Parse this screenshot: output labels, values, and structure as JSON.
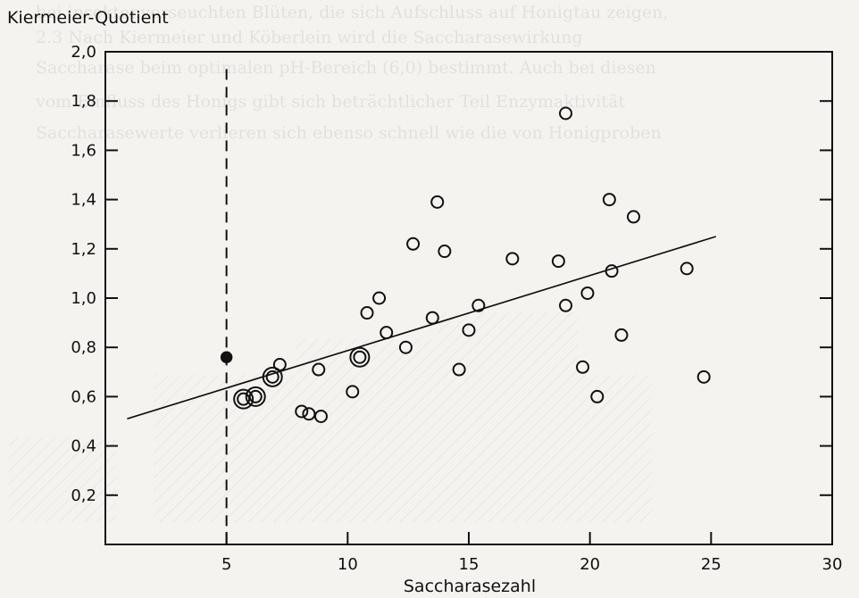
{
  "chart_data": {
    "type": "scatter",
    "title": "",
    "ylabel": "Kiermeier-Quotient",
    "xlabel": "Saccharasezahl",
    "xlim": [
      0,
      30
    ],
    "ylim": [
      0,
      2.0
    ],
    "x_ticks": [
      5,
      10,
      15,
      20,
      25,
      30
    ],
    "y_ticks": [
      0.2,
      0.4,
      0.6,
      0.8,
      1.0,
      1.2,
      1.4,
      1.6,
      1.8,
      2.0
    ],
    "x_tick_labels": [
      "5",
      "10",
      "15",
      "20",
      "25",
      "30"
    ],
    "y_tick_labels": [
      "0,2",
      "0,4",
      "0,6",
      "0,8",
      "1,0",
      "1,2",
      "1,4",
      "1,6",
      "1,8",
      "2,0"
    ],
    "grid": false,
    "legend": "none",
    "reference_line_x": 5,
    "regression_line": {
      "x": [
        0.9,
        25.2
      ],
      "y": [
        0.51,
        1.25
      ]
    },
    "series": [
      {
        "marker": "open-circle",
        "points": [
          [
            7.2,
            0.73
          ],
          [
            8.1,
            0.54
          ],
          [
            8.4,
            0.53
          ],
          [
            8.8,
            0.71
          ],
          [
            8.9,
            0.52
          ],
          [
            10.2,
            0.62
          ],
          [
            10.8,
            0.94
          ],
          [
            11.3,
            1.0
          ],
          [
            11.6,
            0.86
          ],
          [
            12.4,
            0.8
          ],
          [
            12.7,
            1.22
          ],
          [
            13.5,
            0.92
          ],
          [
            13.7,
            1.39
          ],
          [
            14.0,
            1.19
          ],
          [
            14.6,
            0.71
          ],
          [
            15.0,
            0.87
          ],
          [
            15.4,
            0.97
          ],
          [
            16.8,
            1.16
          ],
          [
            18.7,
            1.15
          ],
          [
            19.0,
            1.75
          ],
          [
            19.0,
            0.97
          ],
          [
            19.7,
            0.72
          ],
          [
            19.9,
            1.02
          ],
          [
            20.3,
            0.6
          ],
          [
            20.8,
            1.4
          ],
          [
            20.9,
            1.11
          ],
          [
            21.3,
            0.85
          ],
          [
            21.8,
            1.33
          ],
          [
            24.0,
            1.12
          ],
          [
            24.7,
            0.68
          ]
        ]
      },
      {
        "marker": "double-circle",
        "points": [
          [
            5.7,
            0.59
          ],
          [
            6.2,
            0.6
          ],
          [
            6.9,
            0.68
          ],
          [
            10.5,
            0.76
          ]
        ]
      },
      {
        "marker": "filled-circle",
        "points": [
          [
            5.0,
            0.76
          ]
        ]
      }
    ]
  },
  "background_text": [
    "bei insektenverseuchten Blüten, die sich Aufschluss auf Honigtau zeigen,",
    "2.3 Nach Kiermeier und Köberlein wird die Saccharasewirkung",
    "Saccharase beim optimalen pH-Bereich (6,0) bestimmt. Auch bei diesen",
    "vom Einfluss des Honigs gibt sich beträchtlicher Teil Enzymaktivität",
    "Saccharasewerte verlieren sich ebenso schnell wie die von Honigproben"
  ]
}
